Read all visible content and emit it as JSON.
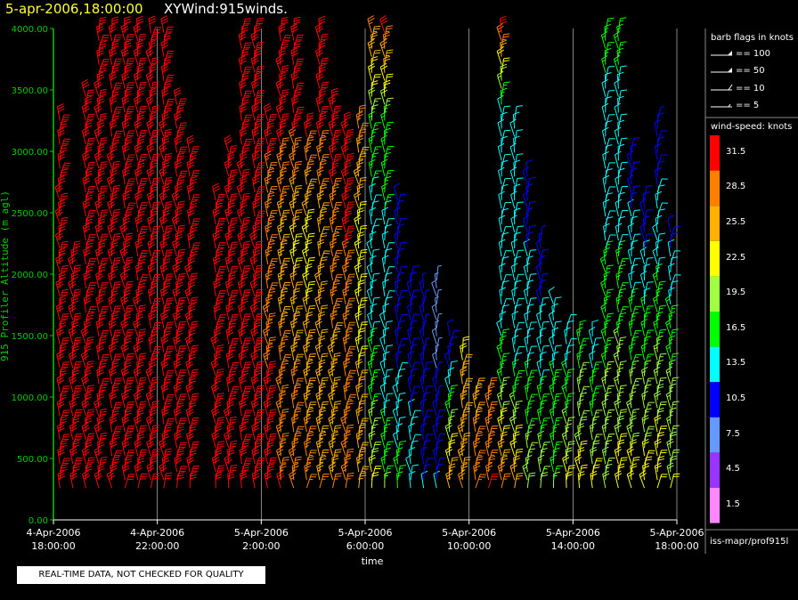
{
  "header": {
    "datetime": "5-apr-2006,18:00:00",
    "plot_name": "XYWind:915winds."
  },
  "notice": "REAL-TIME DATA, NOT CHECKED FOR QUALITY",
  "source": "iss-mapr/prof915l",
  "legend": {
    "flags_title": "barb flags in knots",
    "flags": [
      "== 100",
      "== 50",
      "== 10",
      "== 5"
    ],
    "speed_title": "wind-speed: knots",
    "speed_bins": [
      {
        "label": "31.5",
        "color": "#ff0000"
      },
      {
        "label": "28.5",
        "color": "#ff8000"
      },
      {
        "label": "25.5",
        "color": "#ffb000"
      },
      {
        "label": "22.5",
        "color": "#ffff00"
      },
      {
        "label": "19.5",
        "color": "#a0ff40"
      },
      {
        "label": "16.5",
        "color": "#00ff00"
      },
      {
        "label": "13.5",
        "color": "#00ffff"
      },
      {
        "label": "10.5",
        "color": "#0000ff"
      },
      {
        "label": "7.5",
        "color": "#6699ff"
      },
      {
        "label": "4.5",
        "color": "#9933ff"
      },
      {
        "label": "1.5",
        "color": "#ff88ff"
      }
    ]
  },
  "chart_data": {
    "type": "scatter",
    "subtype": "wind-barbs",
    "ylabel": "915 Profiler Altitude (m agl)",
    "xlabel": "time",
    "ylim": [
      0,
      4000
    ],
    "yticks": [
      "0.00",
      "500.00",
      "1000.00",
      "1500.00",
      "2000.00",
      "2500.00",
      "3000.00",
      "3500.00",
      "4000.00"
    ],
    "xlim": [
      "4-Apr-2006 18:00:00",
      "5-Apr-2006 18:00:00"
    ],
    "xticks": [
      {
        "date": "4-Apr-2006",
        "time": "18:00:00"
      },
      {
        "date": "4-Apr-2006",
        "time": "22:00:00"
      },
      {
        "date": "5-Apr-2006",
        "time": "2:00:00"
      },
      {
        "date": "5-Apr-2006",
        "time": "6:00:00"
      },
      {
        "date": "5-Apr-2006",
        "time": "10:00:00"
      },
      {
        "date": "5-Apr-2006",
        "time": "14:00:00"
      },
      {
        "date": "5-Apr-2006",
        "time": "18:00:00"
      }
    ],
    "grid": "vertical",
    "profiles": [
      {
        "hour": 0.25,
        "top": 3300,
        "spd": [
          30,
          31,
          31,
          32,
          31
        ]
      },
      {
        "hour": 0.75,
        "top": 2200,
        "spd": [
          30,
          30,
          31,
          30,
          29
        ]
      },
      {
        "hour": 1.25,
        "top": 3500,
        "spd": [
          31,
          32,
          31,
          31,
          31
        ]
      },
      {
        "hour": 1.75,
        "top": 4000,
        "spd": [
          31,
          31,
          32,
          31,
          30
        ]
      },
      {
        "hour": 2.25,
        "top": 4000,
        "spd": [
          31,
          31,
          31,
          32,
          31
        ]
      },
      {
        "hour": 2.75,
        "top": 4000,
        "spd": [
          31,
          30,
          31,
          31,
          31
        ]
      },
      {
        "hour": 3.25,
        "top": 4000,
        "spd": [
          31,
          31,
          31,
          31,
          31
        ]
      },
      {
        "hour": 3.75,
        "top": 4000,
        "spd": [
          31,
          32,
          31,
          31,
          31
        ]
      },
      {
        "hour": 4.25,
        "top": 4000,
        "spd": [
          31,
          31,
          31,
          31,
          31
        ]
      },
      {
        "hour": 4.75,
        "top": 3400,
        "spd": [
          31,
          31,
          31,
          31,
          31
        ]
      },
      {
        "hour": 5.25,
        "top": 3000,
        "spd": [
          31,
          31,
          31,
          31,
          31
        ]
      },
      {
        "hour": 6.25,
        "top": 2600,
        "spd": [
          31,
          31,
          31,
          31,
          31
        ]
      },
      {
        "hour": 6.75,
        "top": 3000,
        "spd": [
          31,
          31,
          31,
          31,
          31
        ]
      },
      {
        "hour": 7.25,
        "top": 4000,
        "spd": [
          31,
          31,
          31,
          31,
          31
        ]
      },
      {
        "hour": 7.75,
        "top": 4000,
        "spd": [
          31,
          31,
          30,
          31,
          31
        ]
      },
      {
        "hour": 8.25,
        "top": 3300,
        "spd": [
          31,
          30,
          28,
          31,
          31
        ]
      },
      {
        "hour": 8.75,
        "top": 4000,
        "spd": [
          30,
          28,
          25,
          31,
          31
        ]
      },
      {
        "hour": 9.25,
        "top": 4000,
        "spd": [
          29,
          27,
          23,
          31,
          31
        ]
      },
      {
        "hour": 9.75,
        "top": 3200,
        "spd": [
          28,
          26,
          22,
          31,
          31
        ]
      },
      {
        "hour": 10.25,
        "top": 4000,
        "spd": [
          27,
          25,
          24,
          31,
          31
        ]
      },
      {
        "hour": 10.75,
        "top": 3400,
        "spd": [
          27,
          26,
          29,
          31,
          31
        ]
      },
      {
        "hour": 11.25,
        "top": 3200,
        "spd": [
          27,
          28,
          30,
          31,
          31
        ]
      },
      {
        "hour": 11.75,
        "top": 3300,
        "spd": [
          26,
          24,
          22,
          28,
          31
        ]
      },
      {
        "hour": 12.25,
        "top": 4000,
        "spd": [
          22,
          16,
          12,
          18,
          28
        ]
      },
      {
        "hour": 12.75,
        "top": 4000,
        "spd": [
          18,
          13,
          14,
          17,
          31
        ]
      },
      {
        "hour": 13.25,
        "top": 2600,
        "spd": [
          16,
          12,
          11,
          13,
          31
        ]
      },
      {
        "hour": 13.75,
        "top": 2000,
        "spd": [
          14,
          11,
          10,
          12,
          31
        ]
      },
      {
        "hour": 14.25,
        "top": 1900,
        "spd": [
          12,
          10,
          9,
          11,
          31
        ]
      },
      {
        "hour": 14.75,
        "top": 2000,
        "spd": [
          12,
          9,
          8,
          10,
          31
        ]
      },
      {
        "hour": 15.25,
        "top": 1500,
        "spd": [
          26,
          12,
          8,
          9,
          31
        ]
      },
      {
        "hour": 15.75,
        "top": 1400,
        "spd": [
          27,
          25,
          12,
          9,
          31
        ]
      },
      {
        "hour": 16.25,
        "top": 1100,
        "spd": [
          28,
          26,
          11,
          9,
          31
        ]
      },
      {
        "hour": 16.75,
        "top": 1100,
        "spd": [
          30,
          28,
          12,
          10,
          31
        ]
      },
      {
        "hour": 17.25,
        "top": 4000,
        "spd": [
          28,
          16,
          12,
          12,
          31
        ]
      },
      {
        "hour": 17.75,
        "top": 3300,
        "spd": [
          25,
          15,
          13,
          14,
          18
        ]
      },
      {
        "hour": 18.25,
        "top": 2800,
        "spd": [
          20,
          15,
          12,
          10,
          15
        ]
      },
      {
        "hour": 18.75,
        "top": 2300,
        "spd": [
          20,
          14,
          10,
          8,
          15
        ]
      },
      {
        "hour": 19.25,
        "top": 1800,
        "spd": [
          18,
          15,
          13,
          12,
          14
        ]
      },
      {
        "hour": 19.75,
        "top": 1600,
        "spd": [
          22,
          15,
          10,
          9,
          13
        ]
      },
      {
        "hour": 20.25,
        "top": 1500,
        "spd": [
          22,
          18,
          13,
          10,
          12
        ]
      },
      {
        "hour": 20.75,
        "top": 1500,
        "spd": [
          22,
          15,
          13,
          12,
          12
        ]
      },
      {
        "hour": 21.25,
        "top": 4000,
        "spd": [
          20,
          18,
          15,
          12,
          18
        ]
      },
      {
        "hour": 21.75,
        "top": 4000,
        "spd": [
          22,
          19,
          15,
          13,
          17
        ]
      },
      {
        "hour": 22.25,
        "top": 3000,
        "spd": [
          22,
          18,
          13,
          10,
          12
        ]
      },
      {
        "hour": 22.75,
        "top": 2600,
        "spd": [
          22,
          18,
          12,
          10,
          9
        ]
      },
      {
        "hour": 23.25,
        "top": 3300,
        "spd": [
          23,
          19,
          14,
          10,
          9
        ]
      },
      {
        "hour": 23.75,
        "top": 2400,
        "spd": [
          21,
          18,
          12,
          10,
          10
        ]
      }
    ]
  }
}
